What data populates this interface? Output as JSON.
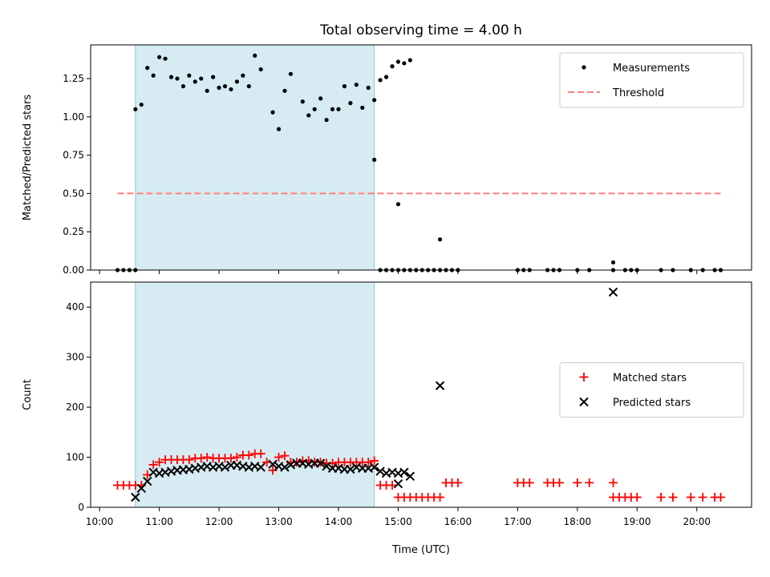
{
  "title": "Total observing time = 4.00 h",
  "chart_data": [
    {
      "type": "scatter",
      "ylabel": "Matched/Predicted stars",
      "xlabel": "",
      "ylim": [
        0,
        1.47
      ],
      "yticks": [
        "0.00",
        "0.25",
        "0.50",
        "0.75",
        "1.00",
        "1.25"
      ],
      "shaded_interval": [
        "10:36",
        "14:36"
      ],
      "legend": {
        "position": "top-right",
        "entries": [
          "Measurements",
          "Threshold"
        ]
      },
      "threshold": {
        "name": "Threshold",
        "value": 0.5,
        "x_range": [
          "10:18",
          "20:24"
        ],
        "color": "#ff7f7f"
      },
      "series": [
        {
          "name": "Measurements",
          "marker": "dot",
          "color": "#000000",
          "points": [
            [
              "10:18",
              0
            ],
            [
              "10:24",
              0
            ],
            [
              "10:30",
              0
            ],
            [
              "10:36",
              0
            ],
            [
              "10:36",
              1.05
            ],
            [
              "10:42",
              1.08
            ],
            [
              "10:48",
              1.32
            ],
            [
              "10:54",
              1.27
            ],
            [
              "11:00",
              1.39
            ],
            [
              "11:06",
              1.38
            ],
            [
              "11:12",
              1.26
            ],
            [
              "11:18",
              1.25
            ],
            [
              "11:24",
              1.2
            ],
            [
              "11:30",
              1.27
            ],
            [
              "11:36",
              1.23
            ],
            [
              "11:42",
              1.25
            ],
            [
              "11:48",
              1.17
            ],
            [
              "11:54",
              1.26
            ],
            [
              "12:00",
              1.19
            ],
            [
              "12:06",
              1.2
            ],
            [
              "12:12",
              1.18
            ],
            [
              "12:18",
              1.23
            ],
            [
              "12:24",
              1.27
            ],
            [
              "12:30",
              1.2
            ],
            [
              "12:36",
              1.4
            ],
            [
              "12:42",
              1.31
            ],
            [
              "12:54",
              1.03
            ],
            [
              "13:00",
              0.92
            ],
            [
              "13:06",
              1.17
            ],
            [
              "13:12",
              1.28
            ],
            [
              "13:24",
              1.1
            ],
            [
              "13:30",
              1.01
            ],
            [
              "13:36",
              1.05
            ],
            [
              "13:42",
              1.12
            ],
            [
              "13:48",
              0.98
            ],
            [
              "13:54",
              1.05
            ],
            [
              "14:00",
              1.05
            ],
            [
              "14:06",
              1.2
            ],
            [
              "14:12",
              1.09
            ],
            [
              "14:18",
              1.21
            ],
            [
              "14:24",
              1.06
            ],
            [
              "14:30",
              1.19
            ],
            [
              "14:36",
              1.11
            ],
            [
              "14:42",
              1.24
            ],
            [
              "14:48",
              1.26
            ],
            [
              "14:54",
              1.33
            ],
            [
              "15:00",
              1.36
            ],
            [
              "15:06",
              1.35
            ],
            [
              "15:12",
              1.37
            ],
            [
              "14:36",
              0.72
            ],
            [
              "14:42",
              0
            ],
            [
              "14:48",
              0
            ],
            [
              "14:54",
              0
            ],
            [
              "15:00",
              0
            ],
            [
              "15:00",
              0.43
            ],
            [
              "15:06",
              0
            ],
            [
              "15:12",
              0
            ],
            [
              "15:18",
              0
            ],
            [
              "15:24",
              0
            ],
            [
              "15:30",
              0
            ],
            [
              "15:36",
              0
            ],
            [
              "15:42",
              0
            ],
            [
              "15:48",
              0
            ],
            [
              "15:42",
              0.2
            ],
            [
              "15:54",
              0
            ],
            [
              "16:00",
              0
            ],
            [
              "17:00",
              0
            ],
            [
              "17:06",
              0
            ],
            [
              "17:12",
              0
            ],
            [
              "17:30",
              0
            ],
            [
              "17:36",
              0
            ],
            [
              "17:42",
              0
            ],
            [
              "18:00",
              0
            ],
            [
              "18:12",
              0
            ],
            [
              "18:36",
              0
            ],
            [
              "18:36",
              0.05
            ],
            [
              "18:48",
              0
            ],
            [
              "18:54",
              0
            ],
            [
              "19:00",
              0
            ],
            [
              "19:24",
              0
            ],
            [
              "19:36",
              0
            ],
            [
              "19:54",
              0
            ],
            [
              "20:06",
              0
            ],
            [
              "20:18",
              0
            ],
            [
              "20:24",
              0
            ]
          ]
        }
      ]
    },
    {
      "type": "scatter",
      "ylabel": "Count",
      "xlabel": "Time (UTC)",
      "ylim": [
        0,
        450
      ],
      "yticks": [
        "0",
        "100",
        "200",
        "300",
        "400"
      ],
      "xticks": [
        "10:00",
        "11:00",
        "12:00",
        "13:00",
        "14:00",
        "15:00",
        "16:00",
        "17:00",
        "18:00",
        "19:00",
        "20:00"
      ],
      "shaded_interval": [
        "10:36",
        "14:36"
      ],
      "legend": {
        "position": "center-right",
        "entries": [
          "Matched stars",
          "Predicted stars"
        ]
      },
      "series": [
        {
          "name": "Matched stars",
          "marker": "plus",
          "color": "#ff0000",
          "points": [
            [
              "10:18",
              44
            ],
            [
              "10:24",
              44
            ],
            [
              "10:30",
              44
            ],
            [
              "10:36",
              44
            ],
            [
              "10:42",
              44
            ],
            [
              "10:48",
              65
            ],
            [
              "10:54",
              85
            ],
            [
              "11:00",
              90
            ],
            [
              "11:06",
              95
            ],
            [
              "11:12",
              95
            ],
            [
              "11:18",
              95
            ],
            [
              "11:24",
              95
            ],
            [
              "11:30",
              95
            ],
            [
              "11:36",
              98
            ],
            [
              "11:42",
              98
            ],
            [
              "11:48",
              100
            ],
            [
              "11:54",
              98
            ],
            [
              "12:00",
              98
            ],
            [
              "12:06",
              98
            ],
            [
              "12:12",
              98
            ],
            [
              "12:18",
              100
            ],
            [
              "12:24",
              104
            ],
            [
              "12:30",
              104
            ],
            [
              "12:36",
              107
            ],
            [
              "12:42",
              107
            ],
            [
              "12:48",
              90
            ],
            [
              "12:54",
              74
            ],
            [
              "13:00",
              100
            ],
            [
              "13:06",
              103
            ],
            [
              "13:12",
              90
            ],
            [
              "13:18",
              90
            ],
            [
              "13:24",
              93
            ],
            [
              "13:30",
              93
            ],
            [
              "13:36",
              90
            ],
            [
              "13:42",
              90
            ],
            [
              "13:48",
              88
            ],
            [
              "13:54",
              88
            ],
            [
              "14:00",
              90
            ],
            [
              "14:06",
              90
            ],
            [
              "14:12",
              90
            ],
            [
              "14:18",
              90
            ],
            [
              "14:24",
              90
            ],
            [
              "14:30",
              90
            ],
            [
              "14:36",
              93
            ],
            [
              "14:42",
              44
            ],
            [
              "14:48",
              44
            ],
            [
              "14:54",
              44
            ],
            [
              "15:00",
              20
            ],
            [
              "15:06",
              20
            ],
            [
              "15:12",
              20
            ],
            [
              "15:18",
              20
            ],
            [
              "15:24",
              20
            ],
            [
              "15:30",
              20
            ],
            [
              "15:36",
              20
            ],
            [
              "15:42",
              20
            ],
            [
              "15:48",
              49
            ],
            [
              "15:54",
              49
            ],
            [
              "16:00",
              49
            ],
            [
              "17:00",
              49
            ],
            [
              "17:06",
              49
            ],
            [
              "17:12",
              49
            ],
            [
              "17:30",
              49
            ],
            [
              "17:36",
              49
            ],
            [
              "17:42",
              49
            ],
            [
              "18:00",
              49
            ],
            [
              "18:12",
              49
            ],
            [
              "18:36",
              49
            ],
            [
              "18:36",
              20
            ],
            [
              "18:42",
              20
            ],
            [
              "18:48",
              20
            ],
            [
              "18:54",
              20
            ],
            [
              "19:00",
              20
            ],
            [
              "19:24",
              20
            ],
            [
              "19:36",
              20
            ],
            [
              "19:54",
              20
            ],
            [
              "20:06",
              20
            ],
            [
              "20:18",
              20
            ],
            [
              "20:24",
              20
            ]
          ]
        },
        {
          "name": "Predicted stars",
          "marker": "x",
          "color": "#000000",
          "points": [
            [
              "10:36",
              20
            ],
            [
              "10:42",
              38
            ],
            [
              "10:48",
              52
            ],
            [
              "10:54",
              70
            ],
            [
              "11:00",
              68
            ],
            [
              "11:06",
              70
            ],
            [
              "11:12",
              72
            ],
            [
              "11:18",
              74
            ],
            [
              "11:24",
              75
            ],
            [
              "11:30",
              76
            ],
            [
              "11:36",
              78
            ],
            [
              "11:42",
              80
            ],
            [
              "11:48",
              82
            ],
            [
              "11:54",
              80
            ],
            [
              "12:00",
              82
            ],
            [
              "12:06",
              80
            ],
            [
              "12:12",
              84
            ],
            [
              "12:18",
              84
            ],
            [
              "12:24",
              82
            ],
            [
              "12:30",
              80
            ],
            [
              "12:36",
              82
            ],
            [
              "12:42",
              80
            ],
            [
              "12:54",
              86
            ],
            [
              "13:00",
              82
            ],
            [
              "13:06",
              80
            ],
            [
              "13:12",
              85
            ],
            [
              "13:18",
              88
            ],
            [
              "13:24",
              88
            ],
            [
              "13:30",
              86
            ],
            [
              "13:36",
              88
            ],
            [
              "13:42",
              88
            ],
            [
              "13:48",
              82
            ],
            [
              "13:54",
              78
            ],
            [
              "14:00",
              78
            ],
            [
              "14:06",
              76
            ],
            [
              "14:12",
              76
            ],
            [
              "14:18",
              80
            ],
            [
              "14:24",
              78
            ],
            [
              "14:30",
              78
            ],
            [
              "14:36",
              80
            ],
            [
              "14:42",
              72
            ],
            [
              "14:48",
              68
            ],
            [
              "14:54",
              70
            ],
            [
              "15:00",
              68
            ],
            [
              "15:06",
              70
            ],
            [
              "15:12",
              62
            ],
            [
              "15:00",
              47
            ],
            [
              "15:42",
              243
            ],
            [
              "18:36",
              430
            ]
          ]
        }
      ]
    }
  ]
}
